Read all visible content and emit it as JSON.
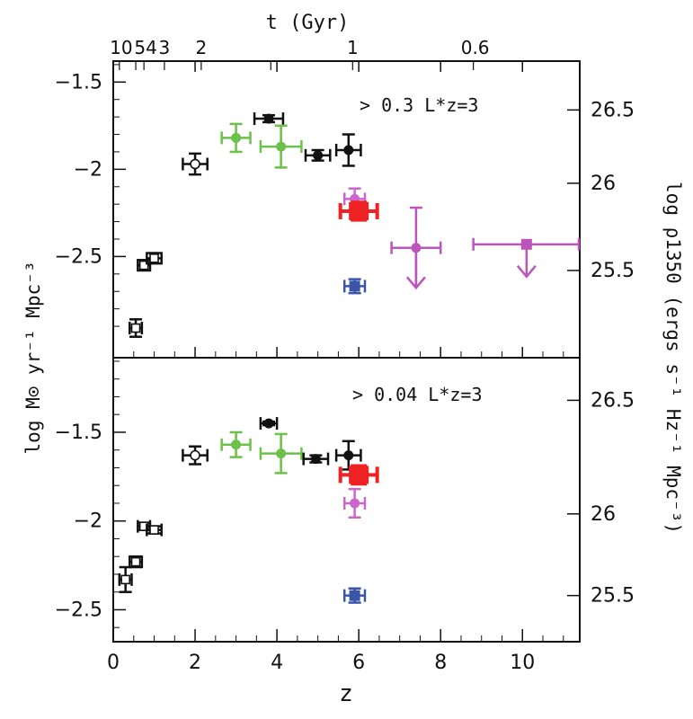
{
  "chart_data": {
    "type": "scatter",
    "top_axis_label": "t (Gyr)",
    "top_ticks": [
      {
        "z": 0.15,
        "label": "10"
      },
      {
        "z": 0.55,
        "label": ""
      },
      {
        "z": 0.75,
        "label": "54"
      },
      {
        "z": 1.25,
        "label": "3"
      },
      {
        "z": 2.15,
        "label": "2"
      },
      {
        "z": 3.85,
        "label": ""
      },
      {
        "z": 5.85,
        "label": "1"
      },
      {
        "z": 8.8,
        "label": "0.6"
      }
    ],
    "xlabel": "z",
    "ylabel_left": "log M⊙ yr⁻¹ Mpc⁻³",
    "ylabel_right": "log ρ1350 (ergs s⁻¹ Hz⁻¹ Mpc⁻³)",
    "xlim": [
      0,
      11.4
    ],
    "x_ticks": [
      "0",
      "2",
      "4",
      "6",
      "8",
      "10"
    ],
    "panels": [
      {
        "annotation": "> 0.3 L*z=3",
        "ylim": [
          -3.08,
          -1.38
        ],
        "y_ticks": [
          "-1.5",
          "-2",
          "-2.5"
        ],
        "y_tick_values": [
          -1.5,
          -2,
          -2.5
        ],
        "right_ticks": [
          "26.5",
          "26",
          "25.5"
        ],
        "right_tick_values": [
          -1.66,
          -2.08,
          -2.58
        ],
        "points": [
          {
            "x": 0.55,
            "y": -2.91,
            "xerr": 0.15,
            "yerr": 0.05,
            "marker": "open-square",
            "color": "#111111"
          },
          {
            "x": 0.75,
            "y": -2.55,
            "xerr": 0.15,
            "yerr": 0.03,
            "marker": "open-square",
            "color": "#111111"
          },
          {
            "x": 1.0,
            "y": -2.51,
            "xerr": 0.18,
            "yerr": 0.03,
            "marker": "open-square",
            "color": "#111111"
          },
          {
            "x": 2.0,
            "y": -1.97,
            "xerr": 0.3,
            "yerr": 0.06,
            "marker": "open-circle",
            "color": "#111111"
          },
          {
            "x": 3.0,
            "y": -1.82,
            "xerr": 0.35,
            "yerr": 0.08,
            "marker": "filled-circle",
            "color": "#6dc04a"
          },
          {
            "x": 3.8,
            "y": -1.71,
            "xerr": 0.35,
            "yerr": 0.02,
            "marker": "filled-circle",
            "color": "#111111"
          },
          {
            "x": 4.1,
            "y": -1.87,
            "xerr": 0.5,
            "yerr": 0.12,
            "marker": "filled-circle",
            "color": "#6dc04a"
          },
          {
            "x": 5.0,
            "y": -1.92,
            "xerr": 0.3,
            "yerr": 0.03,
            "marker": "filled-circle",
            "color": "#111111"
          },
          {
            "x": 5.75,
            "y": -1.89,
            "xerr": 0.3,
            "yerr": 0.09,
            "marker": "filled-circle",
            "color": "#111111"
          },
          {
            "x": 5.9,
            "y": -2.17,
            "xerr": 0.25,
            "yerr": 0.06,
            "marker": "filled-circle",
            "color": "#cc66cc"
          },
          {
            "x": 6.0,
            "y": -2.24,
            "xerr": 0.45,
            "yerr": 0.05,
            "marker": "filled-square-big",
            "color": "#ee2222"
          },
          {
            "x": 5.9,
            "y": -2.67,
            "xerr": 0.25,
            "yerr": 0.04,
            "marker": "filled-square",
            "color": "#3a55a8"
          },
          {
            "x": 7.4,
            "y": -2.45,
            "xerr": 0.6,
            "yerr": 0.23,
            "marker": "filled-circle",
            "color": "#bb55bb",
            "arrow": true
          },
          {
            "x": 10.1,
            "y": -2.43,
            "xerr": 1.3,
            "yerr": 0.0,
            "marker": "filled-square",
            "color": "#bb55bb",
            "arrow": true
          }
        ]
      },
      {
        "annotation": "> 0.04 L*z=3",
        "ylim": [
          -2.68,
          -1.08
        ],
        "y_ticks": [
          "-1.5",
          "-2",
          "-2.5"
        ],
        "y_tick_values": [
          -1.5,
          -2,
          -2.5
        ],
        "right_ticks": [
          "26.5",
          "26",
          "25.5"
        ],
        "right_tick_values": [
          -1.32,
          -1.96,
          -2.42
        ],
        "points": [
          {
            "x": 0.3,
            "y": -2.33,
            "xerr": 0.15,
            "yerr": 0.07,
            "marker": "open-square",
            "color": "#111111"
          },
          {
            "x": 0.55,
            "y": -2.23,
            "xerr": 0.15,
            "yerr": 0.03,
            "marker": "open-square",
            "color": "#111111"
          },
          {
            "x": 0.75,
            "y": -2.03,
            "xerr": 0.15,
            "yerr": 0.02,
            "marker": "open-square",
            "color": "#111111"
          },
          {
            "x": 1.0,
            "y": -2.05,
            "xerr": 0.18,
            "yerr": 0.02,
            "marker": "open-square",
            "color": "#111111"
          },
          {
            "x": 2.0,
            "y": -1.63,
            "xerr": 0.3,
            "yerr": 0.05,
            "marker": "open-circle",
            "color": "#111111"
          },
          {
            "x": 3.0,
            "y": -1.57,
            "xerr": 0.35,
            "yerr": 0.07,
            "marker": "filled-circle",
            "color": "#6dc04a"
          },
          {
            "x": 3.8,
            "y": -1.45,
            "xerr": 0.2,
            "yerr": 0.01,
            "marker": "filled-circle",
            "color": "#111111"
          },
          {
            "x": 4.1,
            "y": -1.62,
            "xerr": 0.5,
            "yerr": 0.11,
            "marker": "filled-circle",
            "color": "#6dc04a"
          },
          {
            "x": 4.95,
            "y": -1.65,
            "xerr": 0.3,
            "yerr": 0.02,
            "marker": "filled-circle",
            "color": "#111111"
          },
          {
            "x": 5.75,
            "y": -1.63,
            "xerr": 0.3,
            "yerr": 0.08,
            "marker": "filled-circle",
            "color": "#111111"
          },
          {
            "x": 6.0,
            "y": -1.74,
            "xerr": 0.45,
            "yerr": 0.05,
            "marker": "filled-square-big",
            "color": "#ee2222"
          },
          {
            "x": 5.9,
            "y": -1.9,
            "xerr": 0.25,
            "yerr": 0.08,
            "marker": "filled-circle",
            "color": "#cc66cc"
          },
          {
            "x": 5.9,
            "y": -2.42,
            "xerr": 0.25,
            "yerr": 0.04,
            "marker": "filled-square",
            "color": "#3a55a8"
          }
        ]
      }
    ]
  }
}
